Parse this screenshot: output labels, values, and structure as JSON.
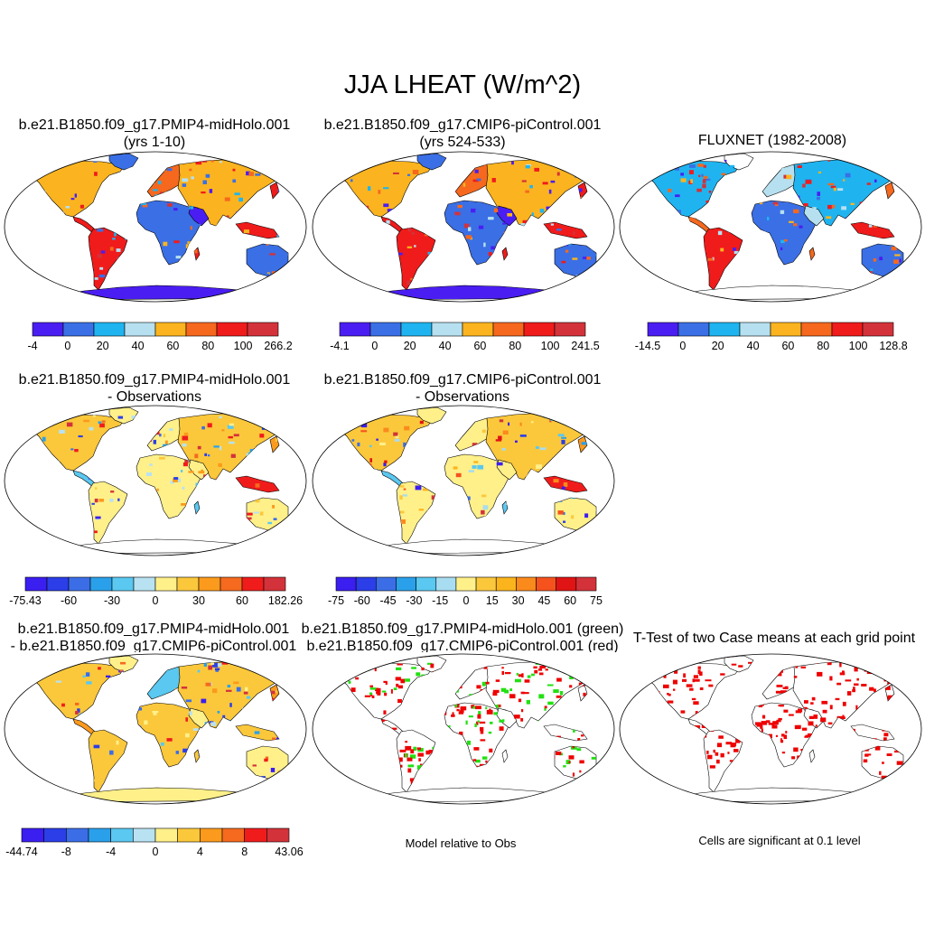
{
  "title": "JJA LHEAT (W/m^2)",
  "colors": {
    "c8": [
      "#4a1ef2",
      "#3a6fe6",
      "#1fb4f0",
      "#b6e0f0",
      "#fbb41f",
      "#f5681e",
      "#f01b1b",
      "#d3323a"
    ],
    "c12": [
      "#3b1ef0",
      "#2b3ee8",
      "#3b6ee6",
      "#2aa0ea",
      "#5ac8f0",
      "#b8e2f2",
      "#fff08a",
      "#fbc83c",
      "#fb9a1c",
      "#f56a1e",
      "#f01c1c",
      "#d3323a"
    ],
    "c13": [
      "#3b1ef0",
      "#2b3ee8",
      "#3b6ee6",
      "#2aa0ea",
      "#5ac8f0",
      "#a8dcf0",
      "#fff08a",
      "#fbc83c",
      "#fbb41c",
      "#fb8a1c",
      "#f5521e",
      "#e01414",
      "#d3323a"
    ],
    "c11": [
      "#3b1ef0",
      "#2b3ee8",
      "#3b6ee6",
      "#2aa0ea",
      "#5ac8f0",
      "#b8e2f2",
      "#fff08a",
      "#fbc83c",
      "#fb9a1c",
      "#f56a1e",
      "#f01c1c",
      "#d3323a"
    ],
    "ocean": "#ffffff",
    "outline": "#000000",
    "green": "#22e011",
    "red": "#ee0000"
  },
  "panels": [
    {
      "id": "p1",
      "title1": "b.e21.B1850.f09_g17.PMIP4-midHolo.001",
      "title2": "(yrs 1-10)",
      "scheme": "abs",
      "style": "full",
      "colorbar": {
        "palette": "c8",
        "labels": [
          "-4",
          "0",
          "20",
          "40",
          "60",
          "80",
          "100",
          "266.2"
        ]
      }
    },
    {
      "id": "p2",
      "title1": "b.e21.B1850.f09_g17.CMIP6-piControl.001",
      "title2": "(yrs 524-533)",
      "scheme": "abs",
      "style": "full",
      "colorbar": {
        "palette": "c8",
        "labels": [
          "-4.1",
          "0",
          "20",
          "40",
          "60",
          "80",
          "100",
          "241.5"
        ]
      }
    },
    {
      "id": "p3",
      "title1": "FLUXNET (1982-2008)",
      "title2": "",
      "scheme": "obs",
      "style": "noant",
      "colorbar": {
        "palette": "c8",
        "labels": [
          "-14.5",
          "0",
          "20",
          "40",
          "60",
          "80",
          "100",
          "128.8"
        ]
      }
    },
    {
      "id": "p4",
      "title1": "b.e21.B1850.f09_g17.PMIP4-midHolo.001",
      "title2": "- Observations",
      "scheme": "diff",
      "style": "noant",
      "colorbar": {
        "palette": "c12",
        "labels": [
          "-75.43",
          "-60",
          "-30",
          "0",
          "30",
          "60",
          "182.26"
        ]
      }
    },
    {
      "id": "p5",
      "title1": "b.e21.B1850.f09_g17.CMIP6-piControl.001",
      "title2": "- Observations",
      "scheme": "diff",
      "style": "noant",
      "colorbar": {
        "palette": "c13",
        "labels": [
          "-75",
          "-60",
          "-45",
          "-30",
          "-15",
          "0",
          "15",
          "30",
          "45",
          "60",
          "75"
        ]
      }
    },
    {
      "id": "p6",
      "title1": "b.e21.B1850.f09_g17.PMIP4-midHolo.001",
      "title2": "- b.e21.B1850.f09_g17.CMIP6-piControl.001",
      "scheme": "ddiff",
      "style": "antyellow",
      "colorbar": {
        "palette": "c11",
        "labels": [
          "-44.74",
          "-8",
          "-4",
          "0",
          "4",
          "8",
          "43.06"
        ]
      }
    },
    {
      "id": "p7",
      "title1": "b.e21.B1850.f09_g17.PMIP4-midHolo.001 (green)",
      "title2": "b.e21.B1850.f09_g17.CMIP6-piControl.001 (red)",
      "scheme": "sig2",
      "style": "outline",
      "note": "Model relative to Obs"
    },
    {
      "id": "p8",
      "title1": "T-Test of two Case means at each grid point",
      "title2": "",
      "scheme": "sig1",
      "style": "outline",
      "note": "Cells are significant at 0.1 level"
    }
  ]
}
